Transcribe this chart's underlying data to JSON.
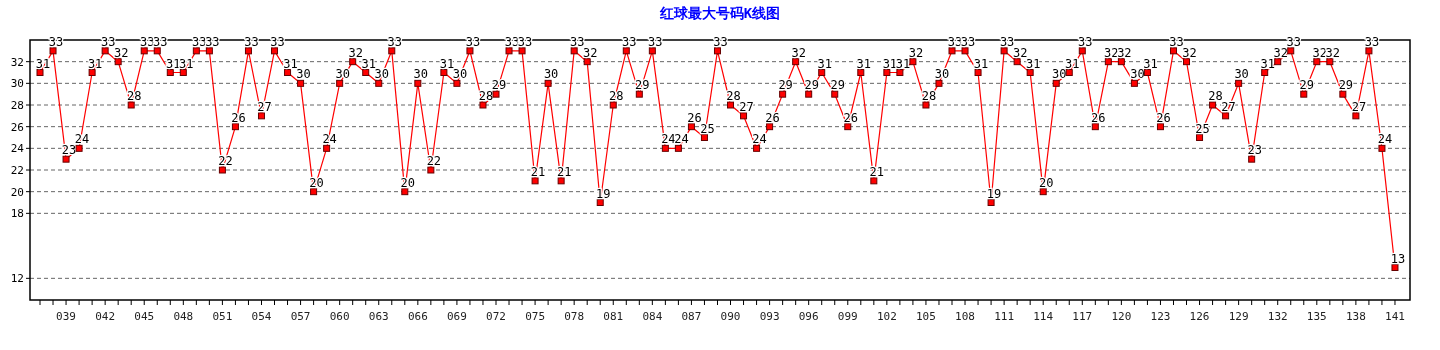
{
  "chart_data": {
    "type": "line",
    "title": "红球最大号码K线图",
    "color": "#ff0000",
    "marker": "square",
    "data_labels": true,
    "grid": "y",
    "categories": [
      null,
      null,
      "039",
      null,
      null,
      "042",
      null,
      null,
      "045",
      null,
      null,
      "048",
      null,
      null,
      "051",
      null,
      null,
      "054",
      null,
      null,
      "057",
      null,
      null,
      "060",
      null,
      null,
      "063",
      null,
      null,
      "066",
      null,
      null,
      "069",
      null,
      null,
      "072",
      null,
      null,
      "075",
      null,
      null,
      "078",
      null,
      null,
      "081",
      null,
      null,
      "084",
      null,
      null,
      "087",
      null,
      null,
      "090",
      null,
      null,
      "093",
      null,
      null,
      "096",
      null,
      null,
      "099",
      null,
      null,
      "102",
      null,
      null,
      "105",
      null,
      null,
      "108",
      null,
      null,
      "111",
      null,
      null,
      "114",
      null,
      null,
      "117",
      null,
      null,
      "120",
      null,
      null,
      "123",
      null,
      null,
      "126",
      null,
      null,
      "129",
      null,
      null,
      "132",
      null,
      null,
      "135",
      null,
      null,
      "138",
      null,
      null,
      "141"
    ],
    "values": [
      31,
      33,
      23,
      24,
      31,
      33,
      32,
      28,
      33,
      33,
      31,
      31,
      33,
      33,
      22,
      26,
      33,
      27,
      33,
      31,
      30,
      20,
      24,
      30,
      32,
      31,
      30,
      33,
      20,
      30,
      22,
      31,
      30,
      33,
      28,
      29,
      33,
      33,
      21,
      30,
      21,
      33,
      32,
      19,
      28,
      33,
      29,
      33,
      24,
      24,
      26,
      25,
      33,
      28,
      27,
      24,
      26,
      29,
      32,
      29,
      31,
      29,
      26,
      31,
      21,
      31,
      31,
      32,
      28,
      30,
      33,
      33,
      31,
      19,
      33,
      32,
      31,
      20,
      30,
      31,
      33,
      26,
      32,
      32,
      30,
      31,
      26,
      33,
      32,
      25,
      28,
      27,
      30,
      23,
      31,
      32,
      33,
      29,
      32,
      32,
      29,
      27,
      33,
      24,
      13
    ],
    "ylim": [
      10,
      34
    ],
    "yticks": [
      32,
      30,
      28,
      26,
      24,
      22,
      20,
      18,
      12
    ]
  }
}
